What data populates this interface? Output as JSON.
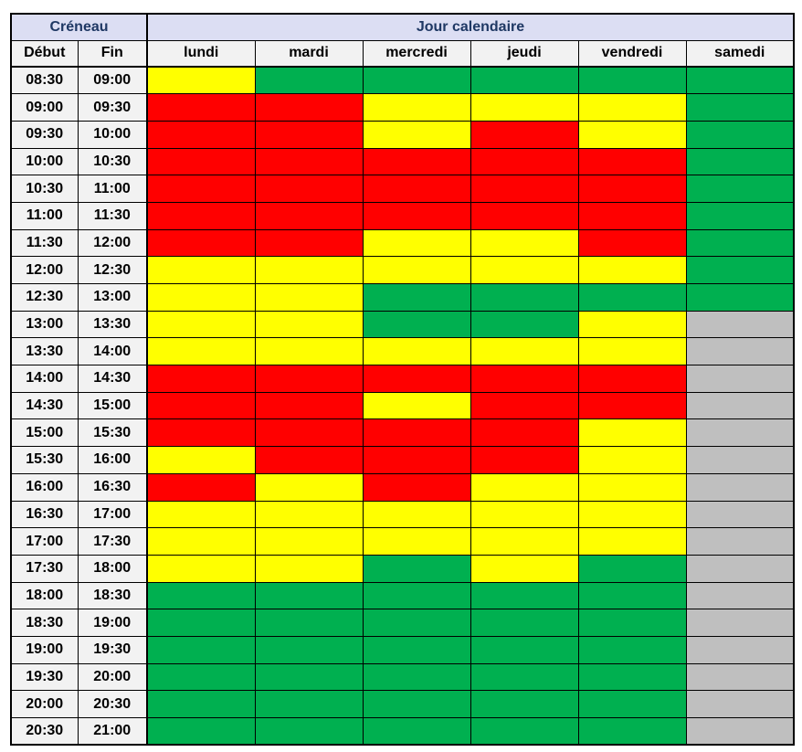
{
  "header": {
    "creneau": "Créneau",
    "jour_calendaire": "Jour calendaire",
    "debut": "Début",
    "fin": "Fin"
  },
  "colors": {
    "header_bg": "#DCDEF3",
    "header_text": "#1F3864",
    "subheader_bg": "#F2F2F2",
    "border": "#000000",
    "page_bg": "#FFFFFF"
  },
  "chart_data": {
    "type": "heatmap",
    "title": "Jour calendaire / Créneau",
    "columns": [
      "lundi",
      "mardi",
      "mercredi",
      "jeudi",
      "vendredi",
      "samedi"
    ],
    "time_slots": [
      {
        "start": "08:30",
        "end": "09:00"
      },
      {
        "start": "09:00",
        "end": "09:30"
      },
      {
        "start": "09:30",
        "end": "10:00"
      },
      {
        "start": "10:00",
        "end": "10:30"
      },
      {
        "start": "10:30",
        "end": "11:00"
      },
      {
        "start": "11:00",
        "end": "11:30"
      },
      {
        "start": "11:30",
        "end": "12:00"
      },
      {
        "start": "12:00",
        "end": "12:30"
      },
      {
        "start": "12:30",
        "end": "13:00"
      },
      {
        "start": "13:00",
        "end": "13:30"
      },
      {
        "start": "13:30",
        "end": "14:00"
      },
      {
        "start": "14:00",
        "end": "14:30"
      },
      {
        "start": "14:30",
        "end": "15:00"
      },
      {
        "start": "15:00",
        "end": "15:30"
      },
      {
        "start": "15:30",
        "end": "16:00"
      },
      {
        "start": "16:00",
        "end": "16:30"
      },
      {
        "start": "16:30",
        "end": "17:00"
      },
      {
        "start": "17:00",
        "end": "17:30"
      },
      {
        "start": "17:30",
        "end": "18:00"
      },
      {
        "start": "18:00",
        "end": "18:30"
      },
      {
        "start": "18:30",
        "end": "19:00"
      },
      {
        "start": "19:00",
        "end": "19:30"
      },
      {
        "start": "19:30",
        "end": "20:00"
      },
      {
        "start": "20:00",
        "end": "20:30"
      },
      {
        "start": "20:30",
        "end": "21:00"
      }
    ],
    "values": [
      [
        "yellow",
        "green",
        "green",
        "green",
        "green",
        "green"
      ],
      [
        "red",
        "red",
        "yellow",
        "yellow",
        "yellow",
        "green"
      ],
      [
        "red",
        "red",
        "yellow",
        "red",
        "yellow",
        "green"
      ],
      [
        "red",
        "red",
        "red",
        "red",
        "red",
        "green"
      ],
      [
        "red",
        "red",
        "red",
        "red",
        "red",
        "green"
      ],
      [
        "red",
        "red",
        "red",
        "red",
        "red",
        "green"
      ],
      [
        "red",
        "red",
        "yellow",
        "yellow",
        "red",
        "green"
      ],
      [
        "yellow",
        "yellow",
        "yellow",
        "yellow",
        "yellow",
        "green"
      ],
      [
        "yellow",
        "yellow",
        "green",
        "green",
        "green",
        "green"
      ],
      [
        "yellow",
        "yellow",
        "green",
        "green",
        "yellow",
        "gray"
      ],
      [
        "yellow",
        "yellow",
        "yellow",
        "yellow",
        "yellow",
        "gray"
      ],
      [
        "red",
        "red",
        "red",
        "red",
        "red",
        "gray"
      ],
      [
        "red",
        "red",
        "yellow",
        "red",
        "red",
        "gray"
      ],
      [
        "red",
        "red",
        "red",
        "red",
        "yellow",
        "gray"
      ],
      [
        "yellow",
        "red",
        "red",
        "red",
        "yellow",
        "gray"
      ],
      [
        "red",
        "yellow",
        "red",
        "yellow",
        "yellow",
        "gray"
      ],
      [
        "yellow",
        "yellow",
        "yellow",
        "yellow",
        "yellow",
        "gray"
      ],
      [
        "yellow",
        "yellow",
        "yellow",
        "yellow",
        "yellow",
        "gray"
      ],
      [
        "yellow",
        "yellow",
        "green",
        "yellow",
        "green",
        "gray"
      ],
      [
        "green",
        "green",
        "green",
        "green",
        "green",
        "gray"
      ],
      [
        "green",
        "green",
        "green",
        "green",
        "green",
        "gray"
      ],
      [
        "green",
        "green",
        "green",
        "green",
        "green",
        "gray"
      ],
      [
        "green",
        "green",
        "green",
        "green",
        "green",
        "gray"
      ],
      [
        "green",
        "green",
        "green",
        "green",
        "green",
        "gray"
      ],
      [
        "green",
        "green",
        "green",
        "green",
        "green",
        "gray"
      ]
    ],
    "palette": {
      "green": "#00B050",
      "yellow": "#FFFF00",
      "red": "#FF0000",
      "gray": "#BFBFBF"
    },
    "legend_position": "none",
    "grid": true
  }
}
